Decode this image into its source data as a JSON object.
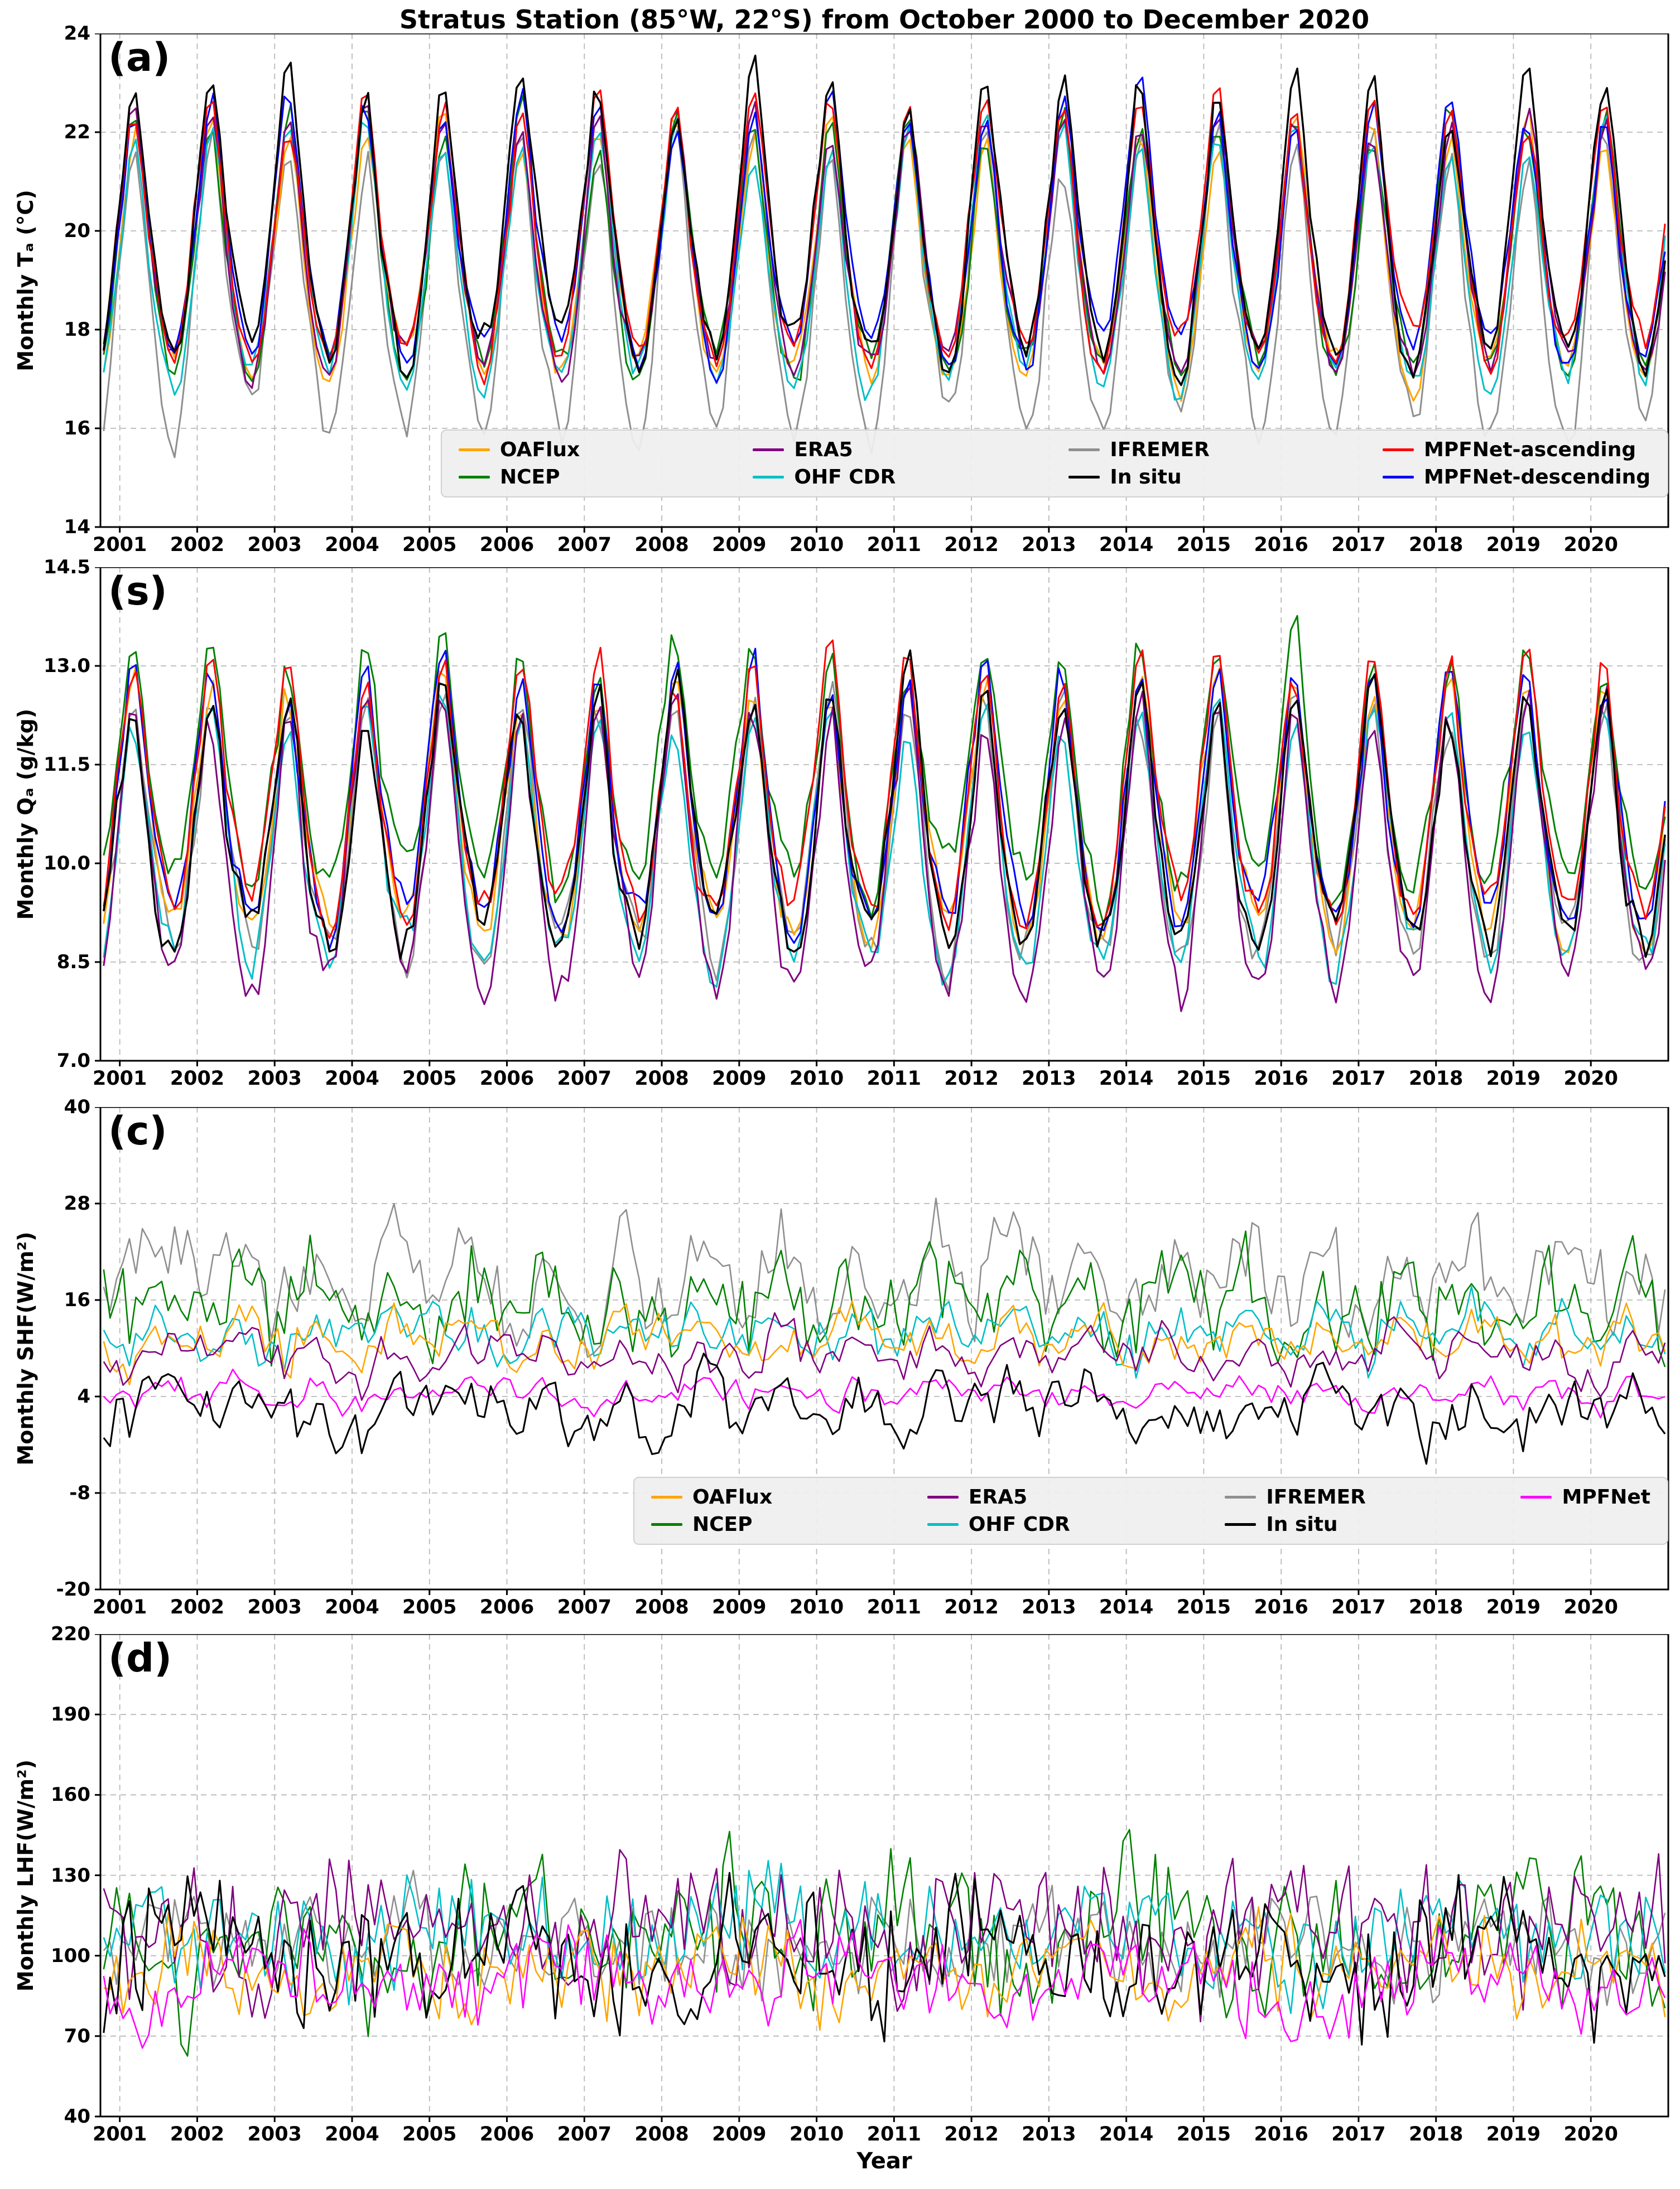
{
  "title": "Stratus Station (85°W, 22°S) from October 2000 to December 2020",
  "x_axis": {
    "label": "Year",
    "ticks": [
      2001,
      2002,
      2003,
      2004,
      2005,
      2006,
      2007,
      2008,
      2009,
      2010,
      2011,
      2012,
      2013,
      2014,
      2015,
      2016,
      2017,
      2018,
      2019,
      2020
    ],
    "range": [
      2000.75,
      2021.0
    ]
  },
  "chart_data": [
    {
      "type": "line",
      "panel_label": "(a)",
      "ylabel": "Monthly Tₐ (°C)",
      "ylim": [
        14,
        24
      ],
      "yticks": [
        "14",
        "16",
        "18",
        "20",
        "22",
        "24"
      ],
      "grid": true,
      "legend_labels": [
        "OAFlux",
        "NCEP",
        "ERA5",
        "OHF CDR",
        "IFREMER",
        "In situ",
        "MPFNet-ascending",
        "MPFNet-descending"
      ],
      "series": [
        {
          "name": "OAFlux",
          "color": "#FFA500",
          "z": 2,
          "monthly_climatology": [
            20.6,
            21.8,
            22.0,
            21.0,
            19.7,
            18.7,
            17.9,
            17.3,
            17.1,
            17.5,
            18.4,
            19.5
          ],
          "noise_amplitude": 0.25,
          "interannual_amplitude": 0.25
        },
        {
          "name": "NCEP",
          "color": "#008000",
          "z": 3,
          "monthly_climatology": [
            20.7,
            21.9,
            22.1,
            21.1,
            19.8,
            18.8,
            18.0,
            17.4,
            17.2,
            17.5,
            18.4,
            19.5
          ],
          "noise_amplitude": 0.3,
          "interannual_amplitude": 0.25
        },
        {
          "name": "ERA5",
          "color": "#800080",
          "z": 5,
          "monthly_climatology": [
            20.8,
            22.0,
            22.2,
            21.2,
            19.8,
            18.8,
            18.0,
            17.5,
            17.3,
            17.6,
            18.5,
            19.6
          ],
          "noise_amplitude": 0.25,
          "interannual_amplitude": 0.25
        },
        {
          "name": "OHF CDR",
          "color": "#00BFC8",
          "z": 4,
          "monthly_climatology": [
            20.5,
            21.7,
            21.9,
            20.9,
            19.6,
            18.6,
            17.8,
            17.2,
            17.0,
            17.4,
            18.3,
            19.4
          ],
          "noise_amplitude": 0.25,
          "interannual_amplitude": 0.25
        },
        {
          "name": "IFREMER",
          "color": "#8F8F8F",
          "z": 1,
          "monthly_climatology": [
            20.3,
            21.4,
            21.6,
            20.5,
            19.0,
            17.9,
            17.0,
            16.3,
            16.0,
            16.4,
            17.5,
            19.0
          ],
          "noise_amplitude": 0.35,
          "interannual_amplitude": 0.3
        },
        {
          "name": "In situ",
          "color": "#000000",
          "z": 8,
          "monthly_climatology": [
            21.2,
            22.6,
            22.8,
            21.6,
            20.2,
            19.2,
            18.3,
            17.7,
            17.5,
            17.8,
            18.8,
            20.0
          ],
          "noise_amplitude": 0.3,
          "interannual_amplitude": 0.35
        },
        {
          "name": "MPFNet-ascending",
          "color": "#FF0000",
          "z": 7,
          "monthly_climatology": [
            21.0,
            22.3,
            22.5,
            21.4,
            20.0,
            19.0,
            18.2,
            17.7,
            17.5,
            17.8,
            18.7,
            19.9
          ],
          "noise_amplitude": 0.25,
          "interannual_amplitude": 0.3
        },
        {
          "name": "MPFNet-descending",
          "color": "#0000FF",
          "z": 6,
          "monthly_climatology": [
            21.0,
            22.2,
            22.4,
            21.3,
            20.0,
            19.0,
            18.2,
            17.7,
            17.5,
            17.8,
            18.7,
            19.8
          ],
          "noise_amplitude": 0.25,
          "interannual_amplitude": 0.3
        }
      ]
    },
    {
      "type": "line",
      "panel_label": "(s)",
      "ylabel": "Monthly Qₐ (g/kg)",
      "ylim": [
        7.0,
        14.5
      ],
      "yticks": [
        "7.0",
        "8.5",
        "10.0",
        "11.5",
        "13.0",
        "14.5"
      ],
      "grid": true,
      "legend_labels": [],
      "series": [
        {
          "name": "OAFlux",
          "color": "#FFA500",
          "z": 2,
          "monthly_climatology": [
            11.6,
            12.5,
            12.6,
            11.8,
            10.8,
            10.0,
            9.5,
            9.1,
            9.0,
            9.2,
            9.9,
            10.8
          ],
          "noise_amplitude": 0.25,
          "interannual_amplitude": 0.2
        },
        {
          "name": "NCEP",
          "color": "#008000",
          "z": 3,
          "monthly_climatology": [
            12.2,
            13.1,
            13.2,
            12.4,
            11.4,
            10.7,
            10.2,
            9.8,
            9.7,
            9.9,
            10.6,
            11.4
          ],
          "noise_amplitude": 0.3,
          "interannual_amplitude": 0.2
        },
        {
          "name": "ERA5",
          "color": "#800080",
          "z": 5,
          "monthly_climatology": [
            11.2,
            12.1,
            12.2,
            11.3,
            10.2,
            9.4,
            8.8,
            8.3,
            8.1,
            8.4,
            9.2,
            10.3
          ],
          "noise_amplitude": 0.3,
          "interannual_amplitude": 0.2
        },
        {
          "name": "OHF CDR",
          "color": "#00BFC8",
          "z": 4,
          "monthly_climatology": [
            11.3,
            12.1,
            12.2,
            11.4,
            10.4,
            9.6,
            9.1,
            8.7,
            8.6,
            8.8,
            9.5,
            10.4
          ],
          "noise_amplitude": 0.25,
          "interannual_amplitude": 0.2
        },
        {
          "name": "IFREMER",
          "color": "#8F8F8F",
          "z": 1,
          "monthly_climatology": [
            11.4,
            12.2,
            12.3,
            11.5,
            10.5,
            9.7,
            9.2,
            8.8,
            8.7,
            8.9,
            9.6,
            10.5
          ],
          "noise_amplitude": 0.3,
          "interannual_amplitude": 0.2
        },
        {
          "name": "In situ",
          "color": "#000000",
          "z": 8,
          "monthly_climatology": [
            11.5,
            12.3,
            12.4,
            11.6,
            10.6,
            9.9,
            9.4,
            9.0,
            8.9,
            9.1,
            9.8,
            10.7
          ],
          "noise_amplitude": 0.3,
          "interannual_amplitude": 0.25
        },
        {
          "name": "MPFNet-ascending",
          "color": "#FF0000",
          "z": 7,
          "monthly_climatology": [
            11.9,
            12.8,
            12.9,
            12.0,
            11.0,
            10.3,
            9.8,
            9.4,
            9.3,
            9.5,
            10.2,
            11.1
          ],
          "noise_amplitude": 0.25,
          "interannual_amplitude": 0.2
        },
        {
          "name": "MPFNet-descending",
          "color": "#0000FF",
          "z": 6,
          "monthly_climatology": [
            11.8,
            12.7,
            12.8,
            11.9,
            11.0,
            10.2,
            9.7,
            9.3,
            9.2,
            9.4,
            10.1,
            11.0
          ],
          "noise_amplitude": 0.25,
          "interannual_amplitude": 0.2
        }
      ]
    },
    {
      "type": "line",
      "panel_label": "(c)",
      "ylabel": "Monthly SHF(W/m²)",
      "ylim": [
        -20,
        40
      ],
      "yticks": [
        "-20",
        "-8",
        "4",
        "16",
        "28",
        "40"
      ],
      "grid": true,
      "legend_labels": [
        "OAFlux",
        "NCEP",
        "ERA5",
        "OHF CDR",
        "IFREMER",
        "In situ",
        "MPFNet"
      ],
      "series": [
        {
          "name": "OAFlux",
          "color": "#FFA500",
          "z": 4,
          "monthly_climatology": [
            10,
            9,
            10,
            11,
            12,
            13,
            13,
            12,
            12,
            11,
            10,
            10
          ],
          "noise_amplitude": 2.2,
          "interannual_amplitude": 1.0
        },
        {
          "name": "NCEP",
          "color": "#008000",
          "z": 2,
          "monthly_climatology": [
            14,
            13,
            14,
            15,
            17,
            18,
            19,
            18,
            17,
            16,
            15,
            14
          ],
          "noise_amplitude": 4.5,
          "interannual_amplitude": 2.0
        },
        {
          "name": "ERA5",
          "color": "#800080",
          "z": 5,
          "monthly_climatology": [
            8,
            7,
            8,
            9,
            10,
            11,
            11,
            10,
            10,
            9,
            8,
            8
          ],
          "noise_amplitude": 2.0,
          "interannual_amplitude": 1.0
        },
        {
          "name": "OHF CDR",
          "color": "#00BFC8",
          "z": 3,
          "monthly_climatology": [
            11,
            10,
            11,
            12,
            13,
            14,
            14,
            13,
            13,
            12,
            11,
            11
          ],
          "noise_amplitude": 2.5,
          "interannual_amplitude": 1.0
        },
        {
          "name": "IFREMER",
          "color": "#8F8F8F",
          "z": 1,
          "monthly_climatology": [
            16,
            15,
            16,
            18,
            20,
            22,
            23,
            22,
            21,
            19,
            17,
            16
          ],
          "noise_amplitude": 4.5,
          "interannual_amplitude": 2.0
        },
        {
          "name": "In situ",
          "color": "#000000",
          "z": 7,
          "monthly_climatology": [
            1,
            0,
            1,
            2,
            3,
            4,
            5,
            4,
            3,
            2,
            1,
            1
          ],
          "noise_amplitude": 2.8,
          "interannual_amplitude": 1.5
        },
        {
          "name": "MPFNet",
          "color": "#FF00FF",
          "z": 6,
          "monthly_climatology": [
            4,
            3.5,
            4,
            4.5,
            5,
            5.5,
            5.5,
            5,
            5,
            4.5,
            4,
            4
          ],
          "noise_amplitude": 1.2,
          "interannual_amplitude": 0.8
        }
      ]
    },
    {
      "type": "line",
      "panel_label": "(d)",
      "ylabel": "Monthly LHF(W/m²)",
      "ylim": [
        40,
        220
      ],
      "yticks": [
        "40",
        "70",
        "100",
        "130",
        "160",
        "190",
        "220"
      ],
      "grid": true,
      "legend_labels": [],
      "series": [
        {
          "name": "OAFlux",
          "color": "#FFA500",
          "z": 5,
          "monthly_climatology": [
            95
          ],
          "noise_amplitude": 14,
          "interannual_amplitude": 5
        },
        {
          "name": "NCEP",
          "color": "#008000",
          "z": 2,
          "monthly_climatology": [
            105
          ],
          "noise_amplitude": 22,
          "interannual_amplitude": 8
        },
        {
          "name": "ERA5",
          "color": "#800080",
          "z": 4,
          "monthly_climatology": [
            110
          ],
          "noise_amplitude": 22,
          "interannual_amplitude": 6
        },
        {
          "name": "OHF CDR",
          "color": "#00BFC8",
          "z": 3,
          "monthly_climatology": [
            108
          ],
          "noise_amplitude": 16,
          "interannual_amplitude": 5
        },
        {
          "name": "IFREMER",
          "color": "#8F8F8F",
          "z": 1,
          "monthly_climatology": [
            104
          ],
          "noise_amplitude": 15,
          "interannual_amplitude": 5
        },
        {
          "name": "In situ",
          "color": "#000000",
          "z": 6,
          "monthly_climatology": [
            100
          ],
          "noise_amplitude": 20,
          "interannual_amplitude": 6
        },
        {
          "name": "MPFNet",
          "color": "#FF00FF",
          "z": 7,
          "monthly_climatology": [
            90
          ],
          "noise_amplitude": 14,
          "interannual_amplitude": 6
        }
      ]
    }
  ]
}
